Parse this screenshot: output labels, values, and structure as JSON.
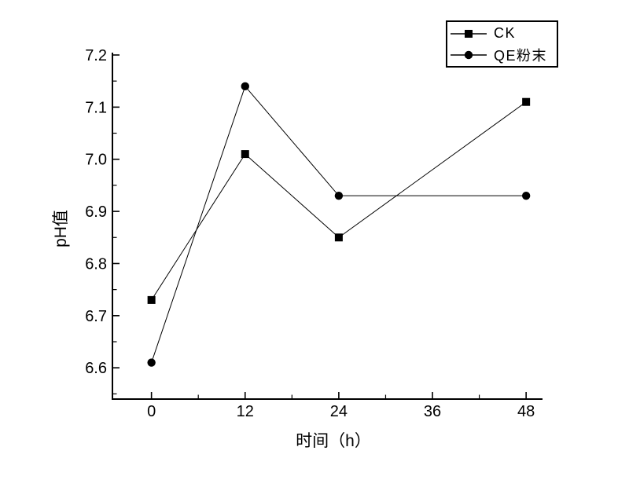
{
  "chart_data": {
    "type": "line",
    "title": "",
    "xlabel": "时间（h）",
    "ylabel": "pH值",
    "x": [
      0,
      12,
      24,
      48
    ],
    "series": [
      {
        "name": "CK",
        "marker": "square",
        "color": "#000000",
        "values": [
          6.73,
          7.01,
          6.85,
          7.11
        ]
      },
      {
        "name": "QE粉末",
        "marker": "circle",
        "color": "#000000",
        "values": [
          6.61,
          7.14,
          6.93,
          6.93
        ]
      }
    ],
    "x_ticks": [
      0,
      12,
      24,
      36,
      48
    ],
    "y_ticks": [
      6.6,
      6.7,
      6.8,
      6.9,
      7.0,
      7.1,
      7.2
    ],
    "x_minor_ticks": [
      6,
      18,
      30,
      42
    ],
    "y_minor_ticks": [
      6.55,
      6.65,
      6.75,
      6.85,
      6.95,
      7.05,
      7.15
    ],
    "xlim": [
      -5,
      50.1
    ],
    "ylim": [
      6.54,
      7.2
    ],
    "grid": false,
    "legend_position": "top-right",
    "axis_color": "#000000",
    "background": "#ffffff"
  }
}
